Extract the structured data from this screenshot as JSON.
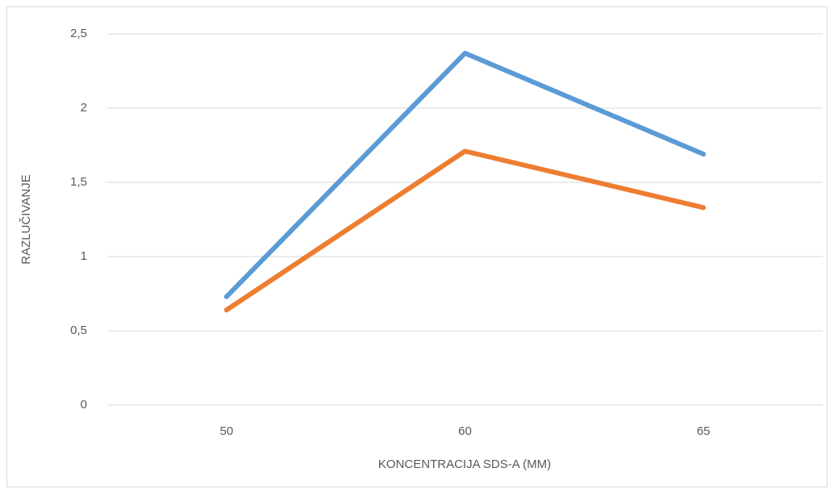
{
  "chart_data": {
    "type": "line",
    "x_label": "KONCENTRACIJA SDS-A (MM)",
    "y_label": "RAZLUČIVANJE",
    "categories": [
      "50",
      "60",
      "65"
    ],
    "series": [
      {
        "color": "#5b9bd5",
        "values": [
          0.73,
          2.37,
          1.69
        ]
      },
      {
        "color": "#ed7d31",
        "values": [
          0.64,
          1.71,
          1.33
        ]
      }
    ],
    "ylim": [
      0,
      2.5
    ],
    "yticks": [
      0,
      {
        "value": 0.5,
        "label": "0,5"
      },
      1,
      {
        "value": 1.5,
        "label": "1,5"
      },
      2,
      {
        "value": 2.5,
        "label": "2,5"
      }
    ],
    "grid": true
  }
}
